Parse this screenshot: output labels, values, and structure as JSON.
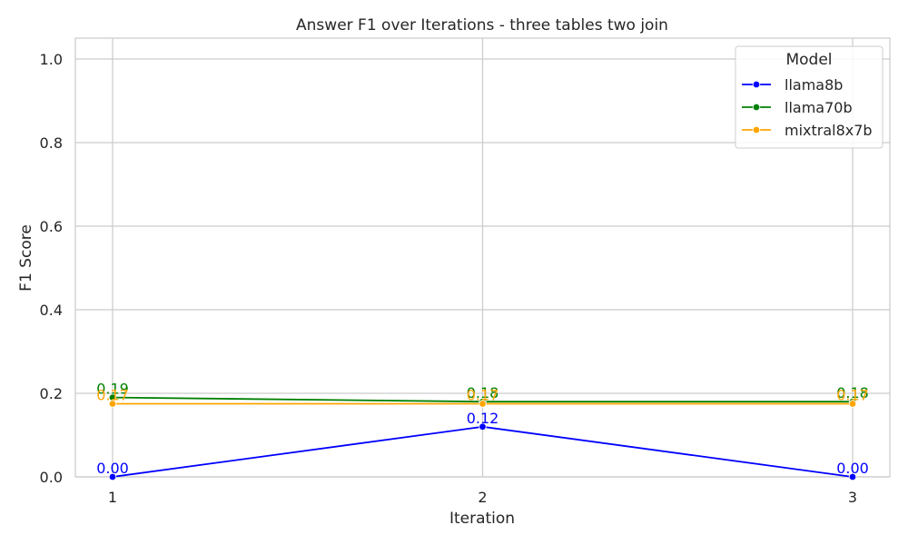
{
  "chart_data": {
    "type": "line",
    "title": "Answer F1 over Iterations - three tables two join",
    "xlabel": "Iteration",
    "ylabel": "F1 Score",
    "x": [
      1,
      2,
      3
    ],
    "x_tick_labels": [
      "1",
      "2",
      "3"
    ],
    "ylim": [
      0,
      1.05
    ],
    "y_ticks": [
      0.0,
      0.2,
      0.4,
      0.6,
      0.8,
      1.0
    ],
    "y_tick_labels": [
      "0.0",
      "0.2",
      "0.4",
      "0.6",
      "0.8",
      "1.0"
    ],
    "grid": true,
    "legend": {
      "title": "Model",
      "position": "top-right"
    },
    "series": [
      {
        "name": "llama8b",
        "color": "#0000ff",
        "values": [
          0.0,
          0.12,
          0.0
        ],
        "labels": [
          "0.00",
          "0.12",
          "0.00"
        ]
      },
      {
        "name": "llama70b",
        "color": "#008000",
        "values": [
          0.19,
          0.18,
          0.18
        ],
        "labels": [
          "0.19",
          "0.18",
          "0.18"
        ]
      },
      {
        "name": "mixtral8x7b",
        "color": "#ffa500",
        "values": [
          0.175,
          0.175,
          0.175
        ],
        "labels": [
          "0.17",
          "0.17",
          "0.17"
        ]
      }
    ]
  }
}
